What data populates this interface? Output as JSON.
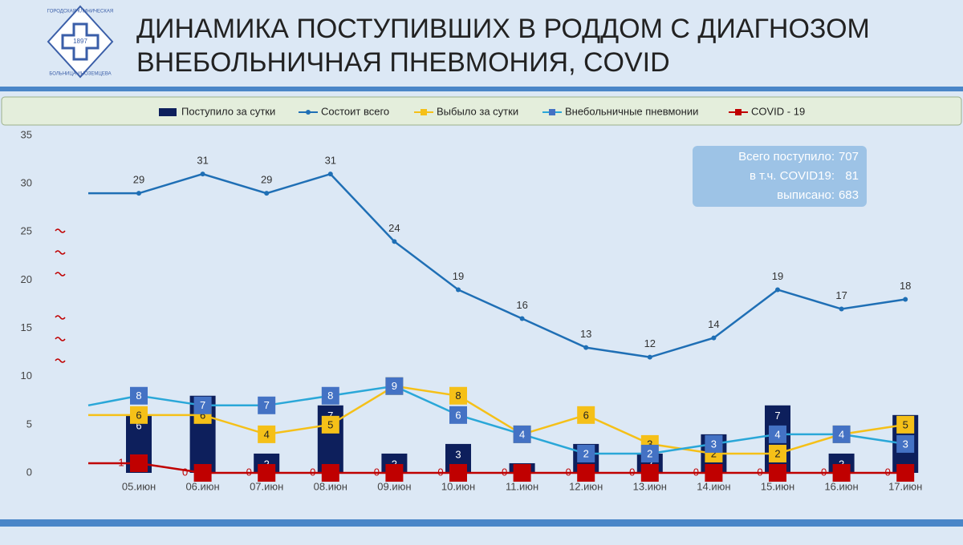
{
  "header": {
    "title_lines": [
      "ДИНАМИКА ПОСТУПИВШИХ В РОДДОМ С ДИАГНОЗОМ",
      "ВНЕБОЛЬНИЧНАЯ ПНЕВМОНИЯ, COVID"
    ],
    "logo": {
      "year": "1897",
      "top": "ГОРОДСКАЯ КЛИНИЧЕСКАЯ",
      "bottom": "БОЛЬНИЦА ИНОЗЕМЦЕВА"
    }
  },
  "chart_data": {
    "type": "bar-line",
    "categories": [
      null,
      "05.июн",
      "06.июн",
      "07.июн",
      "08.июн",
      "09.июн",
      "10.июн",
      "11.июн",
      "12.июн",
      "13.июн",
      "14.июн",
      "15.июн",
      "16.июн",
      "17.июн"
    ],
    "series": [
      {
        "name": "Поступило  за сутки",
        "type": "bar",
        "color": "#0d1f5c",
        "values": [
          null,
          6,
          8,
          2,
          7,
          2,
          3,
          1,
          3,
          2,
          4,
          7,
          2,
          6
        ]
      },
      {
        "name": "Состоит всего",
        "type": "line",
        "color": "#1f6fb5",
        "values": [
          29,
          29,
          31,
          29,
          31,
          24,
          19,
          16,
          13,
          12,
          14,
          19,
          17,
          18
        ]
      },
      {
        "name": "Выбыло за сутки",
        "type": "line",
        "color": "#f5c018",
        "values": [
          6,
          6,
          6,
          4,
          5,
          9,
          8,
          4,
          6,
          3,
          2,
          2,
          4,
          5
        ]
      },
      {
        "name": "Внебольничные пневмонии",
        "type": "line",
        "color": "#2aa7d8",
        "marker_color": "#4472c4",
        "values": [
          7,
          8,
          7,
          7,
          8,
          9,
          6,
          4,
          2,
          2,
          3,
          4,
          4,
          3
        ]
      },
      {
        "name": "COVID - 19",
        "type": "line",
        "color": "#c00000",
        "values": [
          1,
          1,
          0,
          0,
          0,
          0,
          0,
          0,
          0,
          0,
          0,
          0,
          0,
          0
        ]
      }
    ],
    "ylim": [
      0,
      35
    ],
    "yticks": [
      0,
      5,
      10,
      15,
      20,
      25,
      30,
      35
    ],
    "annotations": [
      {
        "label": "Всего поступило:",
        "value": 707
      },
      {
        "label": "в т.ч. COVID19:",
        "value": 81
      },
      {
        "label": "выписано:",
        "value": 683
      }
    ]
  }
}
